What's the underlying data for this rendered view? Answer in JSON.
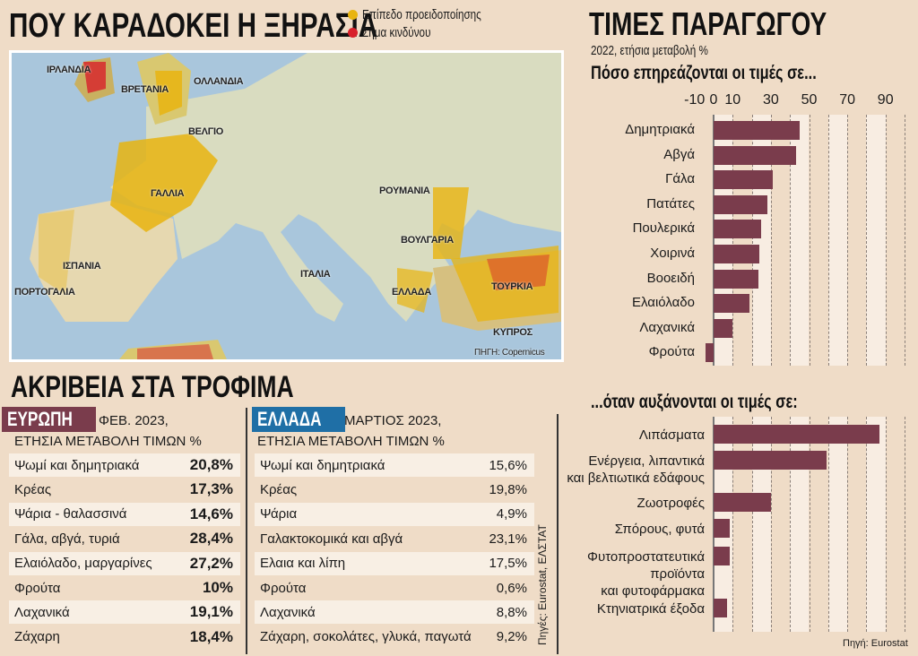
{
  "map_section": {
    "title": "ΠΟΥ ΚΑΡΑΔΟΚΕΙ Η ΞΗΡΑΣΙΑ",
    "legend": [
      {
        "label": "Επίπεδο προειδοποίησης",
        "color": "#e8b40f"
      },
      {
        "label": "Σήμα κινδύνου",
        "color": "#d8202a"
      }
    ],
    "labels": [
      "ΙΡΛΑΝΔΙΑ",
      "ΒΡΕΤΑΝΙΑ",
      "ΟΛΛΑΝΔΙΑ",
      "ΒΕΛΓΙΟ",
      "ΓΑΛΛΙΑ",
      "ΡΟΥΜΑΝΙΑ",
      "ΒΟΥΛΓΑΡΙΑ",
      "ΙΣΠΑΝΙΑ",
      "ΠΟΡΤΟΓΑΛΙΑ",
      "ΙΤΑΛΙΑ",
      "ΕΛΛΑΔΑ",
      "ΤΟΥΡΚΙΑ",
      "ΚΥΠΡΟΣ"
    ],
    "source": "ΠΗΓΗ: Copernicus"
  },
  "prices_section": {
    "title": "ΑΚΡΙΒΕΙΑ ΣΤΑ ΤΡΟΦΙΜΑ",
    "europe": {
      "tag": "ΕΥΡΩΠΗ",
      "tag_color": "#7a3c4c",
      "date": "ΦΕΒ. 2023,",
      "subtitle": "ΕΤΗΣΙΑ ΜΕΤΑΒΟΛΗ ΤΙΜΩΝ %",
      "rows": [
        {
          "label": "Ψωμί και δημητριακά",
          "value": "20,8%"
        },
        {
          "label": "Κρέας",
          "value": "17,3%"
        },
        {
          "label": "Ψάρια - θαλασσινά",
          "value": "14,6%"
        },
        {
          "label": "Γάλα, αβγά, τυριά",
          "value": "28,4%"
        },
        {
          "label": "Ελαιόλαδο, μαργαρίνες",
          "value": "27,2%"
        },
        {
          "label": "Φρούτα",
          "value": "10%"
        },
        {
          "label": "Λαχανικά",
          "value": "19,1%"
        },
        {
          "label": "Ζάχαρη",
          "value": "18,4%"
        }
      ]
    },
    "greece": {
      "tag": "ΕΛΛΑΔΑ",
      "tag_color": "#1f6fa6",
      "date": "ΜΑΡΤΙΟΣ 2023,",
      "subtitle": "ΕΤΗΣΙΑ ΜΕΤΑΒΟΛΗ ΤΙΜΩΝ %",
      "rows": [
        {
          "label": "Ψωμί και δημητριακά",
          "value": "15,6%"
        },
        {
          "label": "Κρέας",
          "value": "19,8%"
        },
        {
          "label": "Ψάρια",
          "value": "4,9%"
        },
        {
          "label": "Γαλακτοκομικά και αβγά",
          "value": "23,1%"
        },
        {
          "label": "Ελαια και λίπη",
          "value": "17,5%"
        },
        {
          "label": "Φρούτα",
          "value": "0,6%"
        },
        {
          "label": "Λαχανικά",
          "value": "8,8%"
        },
        {
          "label": "Ζάχαρη, σοκολάτες, γλυκά, παγωτά",
          "value": "9,2%"
        }
      ]
    },
    "source": "Πηγές: Eurostat, ΕΛΣΤΑΤ"
  },
  "producer_section": {
    "title": "ΤΙΜΕΣ ΠΑΡΑΓΩΓΟΥ",
    "subtitle": "2022, ετήσια μεταβολή %",
    "source": "Πηγή: Eurostat"
  },
  "chart_data": [
    {
      "type": "bar",
      "orientation": "horizontal",
      "title": "Πόσο επηρεάζονται οι τιμές σε...",
      "tick_labels": [
        "-10",
        "0",
        "10",
        "30",
        "50",
        "70",
        "90"
      ],
      "xlim": [
        -10,
        100
      ],
      "grid": true,
      "bar_color": "#7a3c4c",
      "categories": [
        "Δημητριακά",
        "Αβγά",
        "Γάλα",
        "Πατάτες",
        "Πουλερικά",
        "Χοιρινά",
        "Βοοειδή",
        "Ελαιόλαδο",
        "Λαχανικά",
        "Φρούτα"
      ],
      "values": [
        45,
        43,
        31,
        28,
        25,
        24,
        23.5,
        19,
        10,
        -4
      ]
    },
    {
      "type": "bar",
      "orientation": "horizontal",
      "title": "...όταν αυξάνονται οι τιμές σε:",
      "xlim": [
        -10,
        100
      ],
      "grid": true,
      "bar_color": "#7a3c4c",
      "categories": [
        "Λιπάσματα",
        "Ενέργεια, λιπαντικά|και βελτιωτικά εδάφους",
        "Ζωοτροφές",
        "Σπόρους, φυτά",
        "Φυτοπροστατευτικά|προϊόντα|και φυτοφάρμακα",
        "Κτηνιατρικά έξοδα"
      ],
      "values": [
        87,
        59,
        30,
        8.5,
        8.5,
        7
      ]
    }
  ]
}
